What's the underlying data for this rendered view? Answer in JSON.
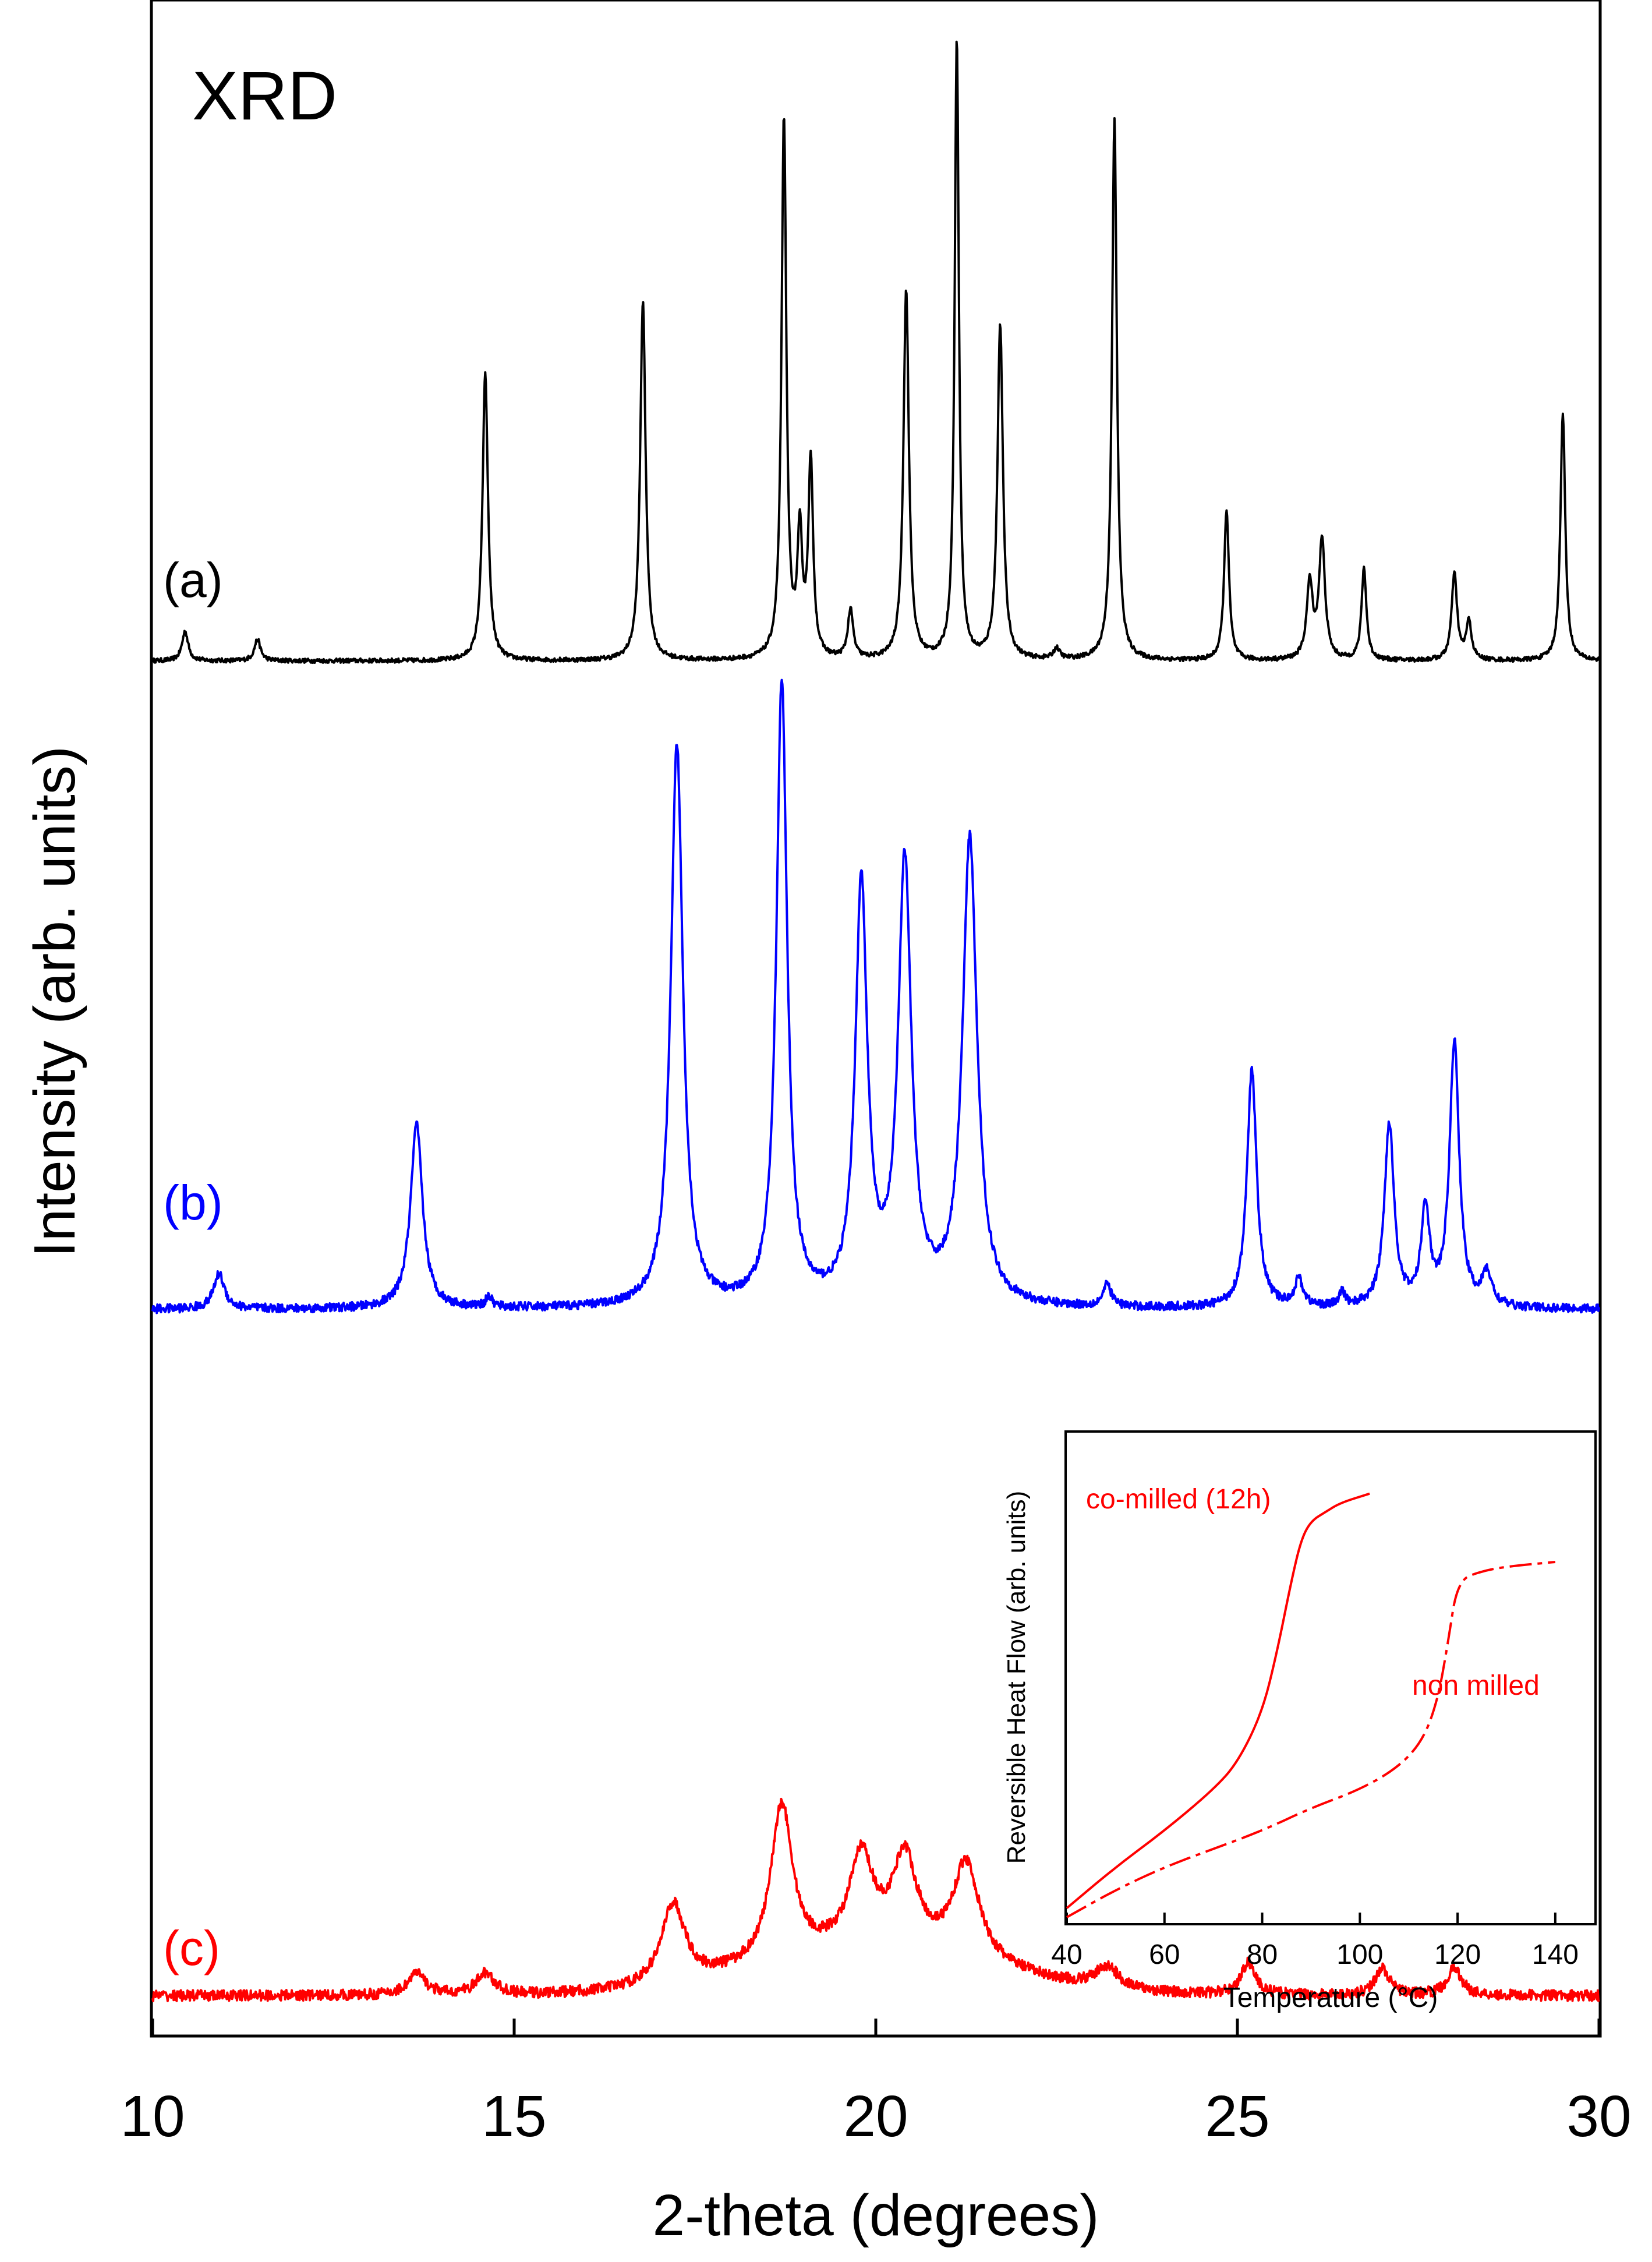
{
  "chart_data": [
    {
      "type": "line",
      "title": "XRD",
      "xlabel": "2-theta (degrees)",
      "ylabel": "Intensity (arb. units)",
      "xlim": [
        10,
        30
      ],
      "x_ticks": [
        10,
        15,
        20,
        25,
        30
      ],
      "x_tick_labels": [
        "10",
        "15",
        "20",
        "25",
        "30"
      ],
      "y_ticks": [],
      "grid": false,
      "series": [
        {
          "name": "(a)",
          "color": "#000000",
          "baseline": 2.5,
          "noise": 0.004,
          "peaks": [
            {
              "pos": 10.45,
              "height": 0.055,
              "width": 0.05
            },
            {
              "pos": 11.45,
              "height": 0.04,
              "width": 0.05
            },
            {
              "pos": 14.6,
              "height": 0.53,
              "width": 0.045
            },
            {
              "pos": 16.78,
              "height": 0.665,
              "width": 0.045
            },
            {
              "pos": 18.73,
              "height": 1.0,
              "width": 0.04
            },
            {
              "pos": 18.95,
              "height": 0.22,
              "width": 0.04
            },
            {
              "pos": 19.1,
              "height": 0.36,
              "width": 0.04
            },
            {
              "pos": 19.65,
              "height": 0.09,
              "width": 0.045
            },
            {
              "pos": 20.42,
              "height": 0.685,
              "width": 0.045
            },
            {
              "pos": 21.12,
              "height": 1.15,
              "width": 0.035
            },
            {
              "pos": 21.72,
              "height": 0.62,
              "width": 0.045
            },
            {
              "pos": 22.5,
              "height": 0.02,
              "width": 0.05
            },
            {
              "pos": 23.3,
              "height": 1.0,
              "width": 0.04
            },
            {
              "pos": 24.85,
              "height": 0.28,
              "width": 0.04
            },
            {
              "pos": 26.0,
              "height": 0.14,
              "width": 0.05
            },
            {
              "pos": 26.17,
              "height": 0.22,
              "width": 0.05
            },
            {
              "pos": 26.75,
              "height": 0.17,
              "width": 0.04
            },
            {
              "pos": 28.0,
              "height": 0.16,
              "width": 0.045
            },
            {
              "pos": 28.2,
              "height": 0.07,
              "width": 0.045
            },
            {
              "pos": 29.5,
              "height": 0.46,
              "width": 0.04
            }
          ]
        },
        {
          "name": "(b)",
          "color": "#0000ff",
          "baseline": 1.3,
          "noise": 0.008,
          "peaks": [
            {
              "pos": 10.92,
              "height": 0.065,
              "width": 0.09
            },
            {
              "pos": 13.65,
              "height": 0.34,
              "width": 0.1
            },
            {
              "pos": 14.65,
              "height": 0.02,
              "width": 0.05
            },
            {
              "pos": 17.25,
              "height": 1.04,
              "width": 0.1
            },
            {
              "pos": 18.7,
              "height": 1.15,
              "width": 0.09
            },
            {
              "pos": 19.8,
              "height": 0.77,
              "width": 0.1
            },
            {
              "pos": 20.4,
              "height": 0.81,
              "width": 0.11
            },
            {
              "pos": 21.3,
              "height": 0.86,
              "width": 0.12
            },
            {
              "pos": 23.2,
              "height": 0.04,
              "width": 0.07
            },
            {
              "pos": 25.2,
              "height": 0.44,
              "width": 0.08
            },
            {
              "pos": 25.85,
              "height": 0.05,
              "width": 0.07
            },
            {
              "pos": 26.45,
              "height": 0.025,
              "width": 0.05
            },
            {
              "pos": 27.1,
              "height": 0.34,
              "width": 0.08
            },
            {
              "pos": 27.6,
              "height": 0.18,
              "width": 0.07
            },
            {
              "pos": 28.0,
              "height": 0.49,
              "width": 0.08
            },
            {
              "pos": 28.45,
              "height": 0.06,
              "width": 0.08
            }
          ]
        },
        {
          "name": "(c)",
          "color": "#ff0000",
          "baseline": 0.03,
          "noise": 0.01,
          "peaks": [
            {
              "pos": 13.65,
              "height": 0.04,
              "width": 0.15
            },
            {
              "pos": 14.6,
              "height": 0.04,
              "width": 0.15
            },
            {
              "pos": 17.2,
              "height": 0.15,
              "width": 0.2
            },
            {
              "pos": 18.7,
              "height": 0.29,
              "width": 0.18
            },
            {
              "pos": 19.8,
              "height": 0.17,
              "width": 0.2
            },
            {
              "pos": 20.4,
              "height": 0.17,
              "width": 0.2
            },
            {
              "pos": 21.25,
              "height": 0.18,
              "width": 0.22
            },
            {
              "pos": 23.2,
              "height": 0.04,
              "width": 0.2
            },
            {
              "pos": 25.15,
              "height": 0.06,
              "width": 0.12
            },
            {
              "pos": 27.0,
              "height": 0.05,
              "width": 0.12
            },
            {
              "pos": 28.0,
              "height": 0.05,
              "width": 0.12
            }
          ],
          "bumps": [
            {
              "pos": 20.0,
              "height": 0.08,
              "width": 2.3
            }
          ]
        }
      ]
    },
    {
      "type": "line",
      "title": "",
      "xlabel": "Temperature (°C)",
      "ylabel": "Reversible Heat Flow (arb. units)",
      "xlim": [
        40,
        148
      ],
      "ylim": [
        0,
        1
      ],
      "x_ticks": [
        40,
        60,
        80,
        100,
        120,
        140
      ],
      "x_tick_labels": [
        "40",
        "60",
        "80",
        "100",
        "120",
        "140"
      ],
      "y_ticks": [],
      "grid": false,
      "series": [
        {
          "name": "co-milled (12h)",
          "color": "#ff0000",
          "style": "solid",
          "x": [
            40,
            50,
            60,
            70,
            75,
            80,
            83,
            86,
            88,
            90,
            93,
            96,
            102
          ],
          "y": [
            0.02,
            0.11,
            0.19,
            0.28,
            0.34,
            0.45,
            0.58,
            0.74,
            0.83,
            0.87,
            0.89,
            0.91,
            0.93
          ]
        },
        {
          "name": "non milled",
          "color": "#ff0000",
          "style": "dash",
          "x": [
            40,
            50,
            60,
            70,
            80,
            90,
            100,
            108,
            113,
            116,
            118,
            120,
            125,
            130,
            140
          ],
          "y": [
            0.0,
            0.06,
            0.11,
            0.15,
            0.19,
            0.24,
            0.28,
            0.33,
            0.39,
            0.48,
            0.6,
            0.74,
            0.76,
            0.77,
            0.78
          ]
        }
      ]
    }
  ]
}
